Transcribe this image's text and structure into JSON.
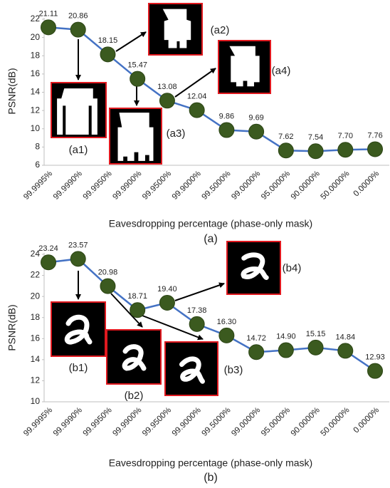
{
  "chart_data": [
    {
      "type": "line",
      "ylabel": "PSNR(dB)",
      "xlabel": "Eavesdropping percentage (phase-only mask)",
      "caption": "(a)",
      "categories": [
        "99.9995%",
        "99.9990%",
        "99.9950%",
        "99.9900%",
        "99.9500%",
        "99.9000%",
        "99.5000%",
        "99.0000%",
        "95.0000%",
        "90.0000%",
        "50.0000%",
        "0.0000%"
      ],
      "series": [
        {
          "color": "#4472c4",
          "marker_color": "#3b5a1f",
          "values": [
            21.11,
            20.86,
            18.15,
            15.47,
            13.08,
            12.04,
            9.86,
            9.69,
            7.62,
            7.54,
            7.7,
            7.76
          ],
          "value_labels": [
            "21.11",
            "20.86",
            "18.15",
            "15.47",
            "13.08",
            "12.04",
            "9.86",
            "9.69",
            "7.62",
            "7.54",
            "7.70",
            "7.76"
          ]
        }
      ],
      "ylim": [
        6,
        22
      ],
      "yticks": [
        6,
        8,
        10,
        12,
        14,
        16,
        18,
        20,
        22
      ],
      "annotations": [
        "(a1)",
        "(a2)",
        "(a3)",
        "(a4)"
      ]
    },
    {
      "type": "line",
      "ylabel": "PSNR(dB)",
      "xlabel": "Eavesdropping percentage (phase-only mask)",
      "caption": "(b)",
      "categories": [
        "99.9995%",
        "99.9990%",
        "99.9950%",
        "99.9900%",
        "99.9500%",
        "99.9000%",
        "99.5000%",
        "99.0000%",
        "95.0000%",
        "90.0000%",
        "50.0000%",
        "0.0000%"
      ],
      "series": [
        {
          "color": "#4472c4",
          "marker_color": "#3b5a1f",
          "values": [
            23.24,
            23.57,
            20.98,
            18.71,
            19.4,
            17.38,
            16.3,
            14.72,
            14.9,
            15.15,
            14.84,
            12.93
          ],
          "value_labels": [
            "23.24",
            "23.57",
            "20.98",
            "18.71",
            "19.40",
            "17.38",
            "16.30",
            "14.72",
            "14.90",
            "15.15",
            "14.84",
            "12.93"
          ]
        }
      ],
      "ylim": [
        10,
        24
      ],
      "yticks": [
        10,
        12,
        14,
        16,
        18,
        20,
        22,
        24
      ],
      "annotations": [
        "(b1)",
        "(b2)",
        "(b3)",
        "(b4)"
      ]
    }
  ]
}
